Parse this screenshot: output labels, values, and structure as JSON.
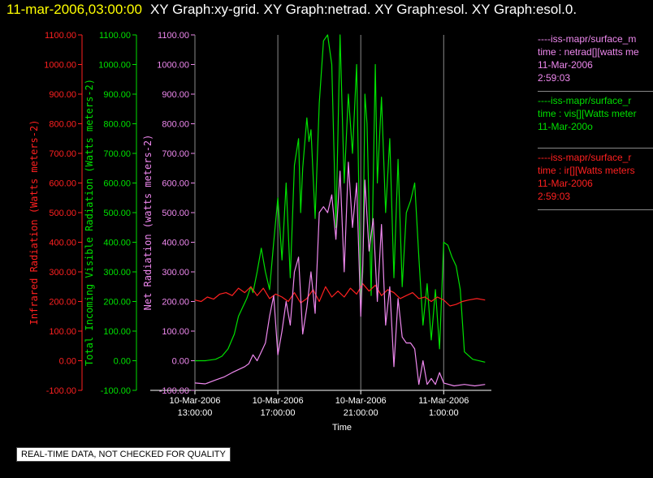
{
  "header": {
    "time": "11-mar-2006,03:00:00",
    "graphs": "XY Graph:xy-grid.  XY Graph:netrad.  XY Graph:esol.  XY Graph:esol.0."
  },
  "colors": {
    "ir": "#ff2020",
    "vis": "#00e000",
    "net": "#ee88ee",
    "grid": "#8a8a8a"
  },
  "legend": [
    {
      "color": "#ee88ee",
      "lines": [
        "----iss-mapr/surface_m",
        "time : netrad[][watts me",
        "11-Mar-2006",
        "2:59:03"
      ]
    },
    {
      "color": "#00e000",
      "lines": [
        "----iss-mapr/surface_r",
        "time : vis[][Watts meter",
        "11-Mar-200o"
      ]
    },
    {
      "color": "#ff2020",
      "lines": [
        "----iss-mapr/surface_r",
        "time : ir[][Watts meters",
        "11-Mar-2006",
        "2:59:03"
      ]
    }
  ],
  "notice": "REAL-TIME DATA, NOT CHECKED FOR QUALITY",
  "chart_data": {
    "type": "line",
    "xlabel": "Time",
    "x_ticks": [
      {
        "l1": "10-Mar-2006",
        "l2": "13:00:00",
        "h": 13
      },
      {
        "l1": "10-Mar-2006",
        "l2": "17:00:00",
        "h": 17
      },
      {
        "l1": "10-Mar-2006",
        "l2": "21:00:00",
        "h": 21
      },
      {
        "l1": "11-Mar-2006",
        "l2": "1:00:00",
        "h": 25
      }
    ],
    "xlim_hours": [
      13,
      27.3
    ],
    "ylim": [
      -100,
      1100
    ],
    "y_ticks": [
      -100,
      0,
      100,
      200,
      300,
      400,
      500,
      600,
      700,
      800,
      900,
      1000,
      1100
    ],
    "axes": [
      {
        "id": "ir",
        "label": "Infrared Radiation (Watts meters-2)",
        "color": "#ff2020",
        "tick_labels": [
          "-100.00",
          "0.00",
          "100.00",
          "200.00",
          "300.00",
          "400.00",
          "500.00",
          "600.00",
          "700.00",
          "800.00",
          "900.00",
          "1000.00",
          "1100.00"
        ]
      },
      {
        "id": "vis",
        "label": "Total Incoming Visible Radiation (Watts meters-2)",
        "color": "#00e000",
        "tick_labels": [
          "-100.00",
          "0.00",
          "100.00",
          "200.00",
          "300.00",
          "400.00",
          "500.00",
          "600.00",
          "700.00",
          "800.00",
          "900.00",
          "1000.00",
          "1100.00"
        ]
      },
      {
        "id": "net",
        "label": "Net Radiation (watts meters-2)",
        "color": "#ee88ee",
        "tick_labels": [
          "-100.00",
          "0.00",
          "100.00",
          "200.00",
          "300.00",
          "400.00",
          "500.00",
          "600.00",
          "700.00",
          "800.00",
          "900.00",
          "1000.00",
          "1100.00"
        ]
      }
    ],
    "series": [
      {
        "id": "vis",
        "color": "#00e000",
        "x": [
          13.0,
          13.5,
          14.0,
          14.3,
          14.6,
          14.9,
          15.1,
          15.3,
          15.5,
          15.7,
          15.8,
          16.0,
          16.2,
          16.4,
          16.6,
          16.8,
          17.0,
          17.2,
          17.4,
          17.6,
          17.8,
          18.0,
          18.1,
          18.2,
          18.4,
          18.5,
          18.6,
          18.8,
          19.0,
          19.2,
          19.4,
          19.6,
          19.8,
          20.0,
          20.2,
          20.4,
          20.6,
          20.8,
          21.0,
          21.1,
          21.2,
          21.3,
          21.5,
          21.7,
          21.8,
          22.0,
          22.2,
          22.4,
          22.6,
          22.8,
          23.0,
          23.2,
          23.4,
          23.6,
          23.8,
          24.0,
          24.2,
          24.4,
          24.6,
          24.8,
          25.0,
          25.2,
          25.4,
          25.6,
          25.8,
          26.0,
          26.4,
          27.0
        ],
        "y": [
          0,
          0,
          5,
          15,
          40,
          90,
          150,
          180,
          210,
          250,
          230,
          300,
          380,
          300,
          240,
          400,
          550,
          340,
          600,
          280,
          660,
          750,
          500,
          650,
          820,
          740,
          780,
          480,
          870,
          1080,
          1100,
          1000,
          450,
          1100,
          600,
          900,
          700,
          1000,
          200,
          300,
          900,
          800,
          220,
          1000,
          600,
          890,
          500,
          750,
          280,
          680,
          250,
          500,
          540,
          600,
          350,
          120,
          260,
          70,
          240,
          40,
          400,
          390,
          350,
          320,
          240,
          30,
          5,
          -5
        ]
      },
      {
        "id": "ir",
        "color": "#ff2020",
        "x": [
          13.0,
          13.3,
          13.6,
          13.9,
          14.2,
          14.5,
          14.8,
          15.1,
          15.4,
          15.7,
          16.0,
          16.3,
          16.6,
          16.9,
          17.2,
          17.5,
          17.8,
          18.1,
          18.4,
          18.7,
          19.0,
          19.3,
          19.6,
          19.9,
          20.2,
          20.5,
          20.8,
          21.1,
          21.4,
          21.7,
          22.0,
          22.3,
          22.6,
          22.9,
          23.2,
          23.5,
          23.8,
          24.1,
          24.4,
          24.7,
          25.0,
          25.3,
          25.6,
          25.9,
          26.2,
          26.6,
          27.0
        ],
        "y": [
          205,
          200,
          215,
          208,
          225,
          230,
          220,
          245,
          230,
          250,
          220,
          245,
          210,
          225,
          215,
          200,
          230,
          195,
          210,
          240,
          200,
          250,
          215,
          235,
          215,
          245,
          225,
          260,
          235,
          255,
          220,
          240,
          230,
          210,
          220,
          230,
          210,
          215,
          200,
          215,
          205,
          185,
          190,
          200,
          205,
          210,
          205
        ]
      },
      {
        "id": "net",
        "color": "#ee88ee",
        "x": [
          13.0,
          13.5,
          14.0,
          14.4,
          14.8,
          15.1,
          15.4,
          15.6,
          15.8,
          16.0,
          16.2,
          16.4,
          16.6,
          16.8,
          17.0,
          17.2,
          17.4,
          17.6,
          17.8,
          18.0,
          18.2,
          18.4,
          18.6,
          18.8,
          19.0,
          19.2,
          19.4,
          19.6,
          19.8,
          20.0,
          20.2,
          20.4,
          20.6,
          20.8,
          21.0,
          21.1,
          21.2,
          21.4,
          21.6,
          21.8,
          22.0,
          22.2,
          22.4,
          22.6,
          22.8,
          23.0,
          23.2,
          23.4,
          23.6,
          23.8,
          24.0,
          24.2,
          24.4,
          24.6,
          24.8,
          25.0,
          25.5,
          26.0,
          26.5,
          27.0
        ],
        "y": [
          -75,
          -78,
          -65,
          -55,
          -40,
          -30,
          -20,
          -10,
          20,
          0,
          30,
          60,
          150,
          220,
          20,
          100,
          200,
          120,
          300,
          350,
          90,
          180,
          300,
          160,
          500,
          520,
          500,
          560,
          410,
          640,
          300,
          670,
          450,
          600,
          150,
          330,
          610,
          370,
          480,
          200,
          460,
          120,
          250,
          -20,
          210,
          80,
          60,
          60,
          40,
          -80,
          0,
          -80,
          -60,
          -80,
          -40,
          -75,
          -85,
          -80,
          -85,
          -80
        ]
      }
    ]
  }
}
